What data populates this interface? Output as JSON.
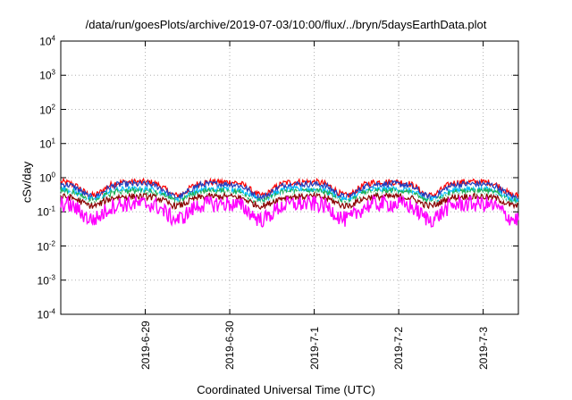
{
  "chart_data": {
    "type": "line",
    "title": "/data/run/goesPlots/archive/2019-07-03/10:00/flux/../bryn/5daysEarthData.plot",
    "xlabel": "Coordinated Universal Time (UTC)",
    "ylabel": "cSv/day",
    "yscale": "log",
    "ylim": [
      0.0001,
      10000
    ],
    "y_ticks": [
      {
        "base": "10",
        "exp": "4"
      },
      {
        "base": "10",
        "exp": "3"
      },
      {
        "base": "10",
        "exp": "2"
      },
      {
        "base": "10",
        "exp": "1"
      },
      {
        "base": "10",
        "exp": "0"
      },
      {
        "base": "10",
        "exp": "-1"
      },
      {
        "base": "10",
        "exp": "-2"
      },
      {
        "base": "10",
        "exp": "-3"
      },
      {
        "base": "10",
        "exp": "-4"
      }
    ],
    "x_ticks": [
      "2019-6-29",
      "2019-6-30",
      "2019-7-1",
      "2019-7-2",
      "2019-7-3"
    ],
    "xlim": [
      "2019-06-28 00:00",
      "2019-07-03 10:00"
    ],
    "grid": true,
    "daily_dip_x": [
      "2019-06-28 09:00",
      "2019-06-29 09:00",
      "2019-06-30 09:00",
      "2019-07-01 09:00",
      "2019-07-02 09:00",
      "2019-07-03 09:00"
    ],
    "series": [
      {
        "color": "#ff0000",
        "level": 0.75,
        "dip_level": 0.3
      },
      {
        "color": "#1f3fbf",
        "level": 0.65,
        "dip_level": 0.27
      },
      {
        "color": "#00bfff",
        "level": 0.45,
        "dip_level": 0.22
      },
      {
        "color": "#20b050",
        "level": 0.4,
        "dip_level": 0.2
      },
      {
        "color": "#ffffff",
        "level": 0.33,
        "dip_level": 0.18
      },
      {
        "color": "#8b0000",
        "level": 0.28,
        "dip_level": 0.15
      },
      {
        "color": "#ff00ff",
        "level": 0.17,
        "dip_level": 0.06
      }
    ]
  }
}
